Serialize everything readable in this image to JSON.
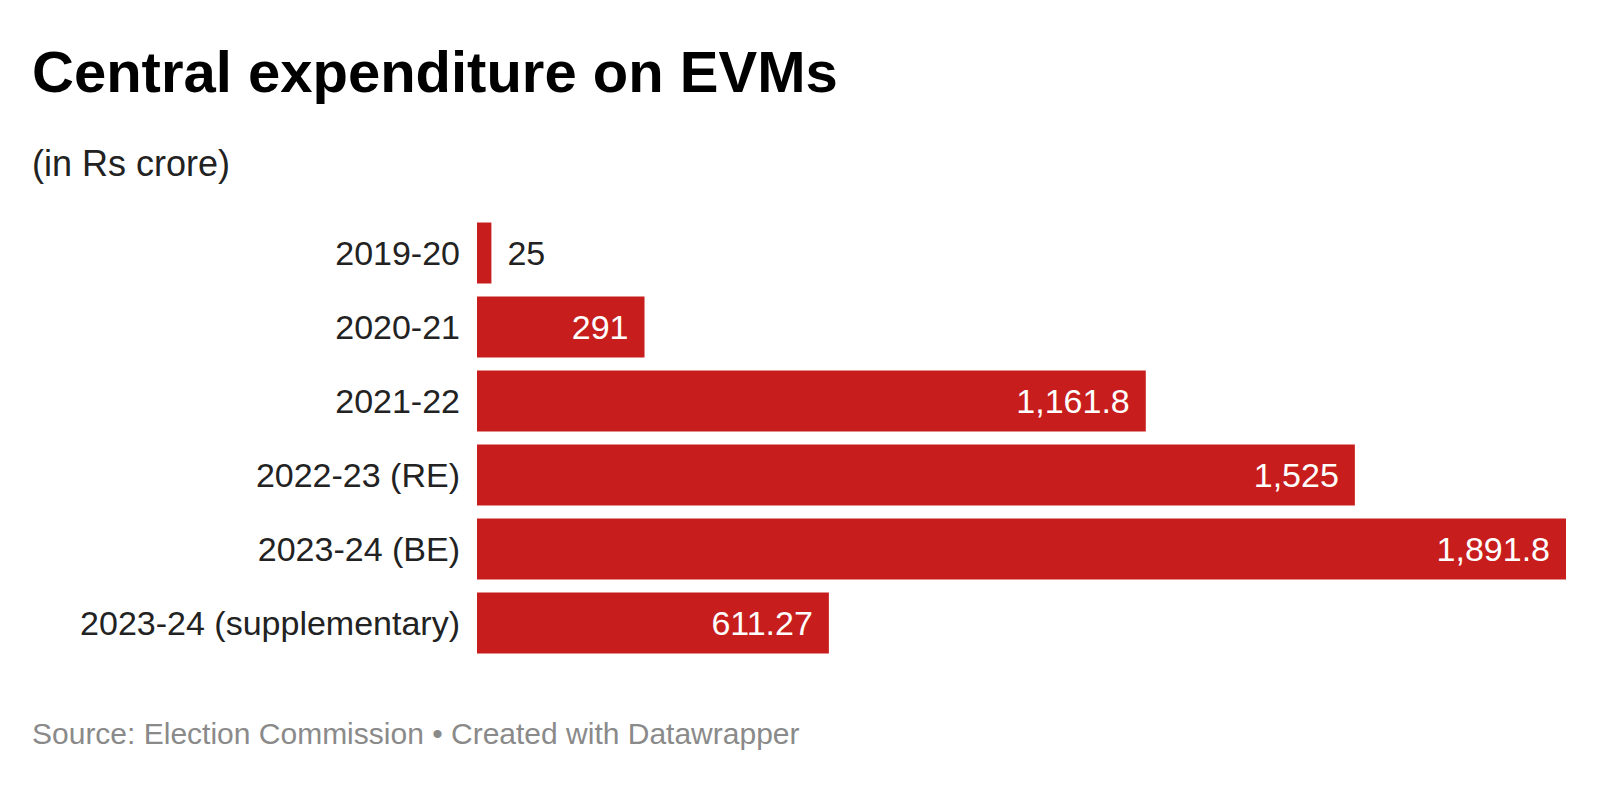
{
  "chart_data": {
    "type": "bar",
    "orientation": "horizontal",
    "title": "Central expenditure on EVMs",
    "subtitle": "(in Rs crore)",
    "source": "Source: Election Commission • Created with Datawrapper",
    "categories": [
      "2019-20",
      "2020-21",
      "2021-22",
      "2022-23 (RE)",
      "2023-24 (BE)",
      "2023-24 (supplementary)"
    ],
    "values": [
      25,
      291,
      1161.8,
      1525,
      1891.8,
      611.27
    ],
    "value_labels": [
      "25",
      "291",
      "1,161.8",
      "1,525",
      "1,891.8",
      "611.27"
    ],
    "data_labels": true,
    "color": "#c71e1d",
    "xlim": [
      0,
      1891.8
    ],
    "tick_labels": false,
    "grid": false
  }
}
